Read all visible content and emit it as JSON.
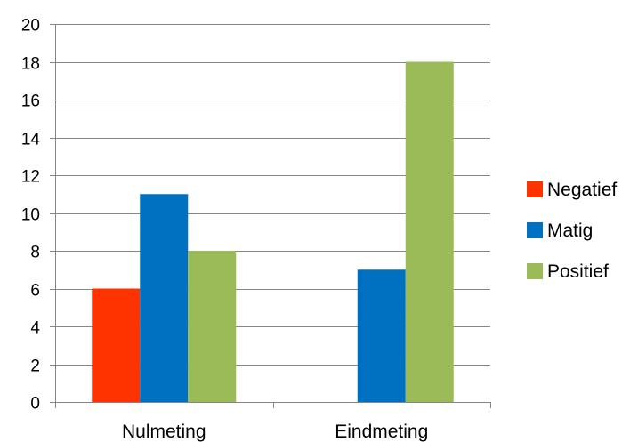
{
  "chart_data": {
    "type": "bar",
    "title": "",
    "xlabel": "",
    "ylabel": "",
    "categories": [
      "Nulmeting",
      "Eindmeting"
    ],
    "series": [
      {
        "name": "Negatief",
        "color": "#ff3300",
        "values": [
          6,
          0
        ]
      },
      {
        "name": "Matig",
        "color": "#0070c0",
        "values": [
          11,
          7
        ]
      },
      {
        "name": "Positief",
        "color": "#9bbb59",
        "values": [
          8,
          18
        ]
      }
    ],
    "ylim": [
      0,
      20
    ],
    "yticks": [
      0,
      2,
      4,
      6,
      8,
      10,
      12,
      14,
      16,
      18,
      20
    ],
    "grid": "horizontal",
    "legend_position": "right"
  }
}
